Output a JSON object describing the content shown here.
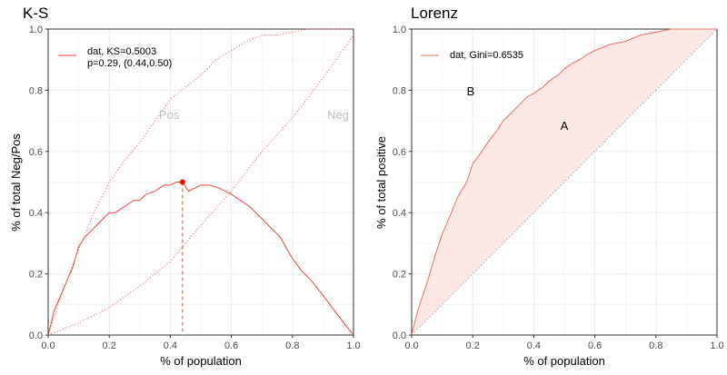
{
  "chart_data": [
    {
      "type": "line",
      "title": "K-S",
      "xlabel": "% of population",
      "ylabel": "% of total Neg/Pos",
      "xlim": [
        0,
        1
      ],
      "ylim": [
        0,
        1
      ],
      "xticks": [
        "0.0",
        "0.2",
        "0.4",
        "0.6",
        "0.8",
        "1.0"
      ],
      "yticks": [
        "0.0",
        "0.2",
        "0.4",
        "0.6",
        "0.8",
        "1.0"
      ],
      "grid": true,
      "legend": {
        "placement": "top-left",
        "line1": "dat, KS=0.5003",
        "line2": "p=0.29, (0.44,0.50)"
      },
      "annotations": {
        "pos": "Pos",
        "neg": "Neg"
      },
      "ks_point": {
        "x": 0.44,
        "y": 0.5
      },
      "series": [
        {
          "role": "ks",
          "style": "solid",
          "x": [
            0,
            0.02,
            0.05,
            0.08,
            0.1,
            0.12,
            0.15,
            0.18,
            0.2,
            0.22,
            0.25,
            0.28,
            0.3,
            0.32,
            0.35,
            0.38,
            0.4,
            0.42,
            0.44,
            0.46,
            0.48,
            0.5,
            0.53,
            0.56,
            0.6,
            0.63,
            0.66,
            0.7,
            0.73,
            0.76,
            0.8,
            0.83,
            0.86,
            0.9,
            0.93,
            0.96,
            1.0
          ],
          "y": [
            0,
            0.08,
            0.15,
            0.22,
            0.29,
            0.32,
            0.35,
            0.38,
            0.4,
            0.4,
            0.42,
            0.44,
            0.44,
            0.46,
            0.47,
            0.49,
            0.49,
            0.5,
            0.5,
            0.47,
            0.48,
            0.49,
            0.49,
            0.48,
            0.46,
            0.44,
            0.42,
            0.38,
            0.35,
            0.32,
            0.25,
            0.21,
            0.18,
            0.13,
            0.09,
            0.05,
            0
          ]
        },
        {
          "role": "pos",
          "style": "dotted",
          "x": [
            0,
            0.05,
            0.1,
            0.15,
            0.2,
            0.25,
            0.3,
            0.35,
            0.4,
            0.45,
            0.5,
            0.55,
            0.6,
            0.65,
            0.7,
            0.75,
            0.8,
            0.85,
            0.9,
            0.95,
            1.0
          ],
          "y": [
            0,
            0.15,
            0.28,
            0.4,
            0.5,
            0.57,
            0.63,
            0.7,
            0.77,
            0.81,
            0.85,
            0.9,
            0.93,
            0.96,
            0.98,
            0.98,
            0.99,
            1.0,
            1.0,
            1.0,
            1.0
          ]
        },
        {
          "role": "neg",
          "style": "dotted",
          "x": [
            0,
            0.1,
            0.2,
            0.3,
            0.4,
            0.5,
            0.6,
            0.7,
            0.8,
            0.9,
            1.0
          ],
          "y": [
            0,
            0.04,
            0.09,
            0.16,
            0.24,
            0.36,
            0.47,
            0.6,
            0.71,
            0.84,
            0.98
          ]
        }
      ]
    },
    {
      "type": "area",
      "title": "Lorenz",
      "xlabel": "% of population",
      "ylabel": "% of total positive",
      "xlim": [
        0,
        1
      ],
      "ylim": [
        0,
        1
      ],
      "xticks": [
        "0.0",
        "0.2",
        "0.4",
        "0.6",
        "0.8",
        "1.0"
      ],
      "yticks": [
        "0.0",
        "0.2",
        "0.4",
        "0.6",
        "0.8",
        "1.0"
      ],
      "grid": true,
      "legend": {
        "placement": "top-left",
        "line1": "dat, Gini=0.6535"
      },
      "annotations": {
        "a": "A",
        "b": "B"
      },
      "series": [
        {
          "role": "lorenz",
          "x": [
            0,
            0.02,
            0.05,
            0.08,
            0.1,
            0.13,
            0.15,
            0.18,
            0.2,
            0.23,
            0.25,
            0.28,
            0.3,
            0.33,
            0.35,
            0.38,
            0.4,
            0.43,
            0.45,
            0.48,
            0.5,
            0.53,
            0.55,
            0.58,
            0.6,
            0.65,
            0.7,
            0.75,
            0.8,
            0.85,
            0.9,
            0.95,
            1.0
          ],
          "y": [
            0,
            0.08,
            0.17,
            0.27,
            0.33,
            0.4,
            0.45,
            0.5,
            0.56,
            0.6,
            0.63,
            0.67,
            0.7,
            0.73,
            0.75,
            0.78,
            0.79,
            0.81,
            0.83,
            0.85,
            0.87,
            0.89,
            0.9,
            0.92,
            0.93,
            0.95,
            0.96,
            0.98,
            0.99,
            1.0,
            1.0,
            1.0,
            1.0
          ]
        },
        {
          "role": "diagonal",
          "x": [
            0,
            1
          ],
          "y": [
            0,
            1
          ]
        }
      ]
    }
  ],
  "colors": {
    "ks": "#e8473d",
    "pos": "#ee6b62",
    "neg": "#ee6b62",
    "lorenz": "#ee7066",
    "lorenz_fill": "#fde4e2",
    "diagonal": "#9aa7bf",
    "grid": "#ebebeb",
    "panel_border": "#333333",
    "point": "#ff0000"
  }
}
